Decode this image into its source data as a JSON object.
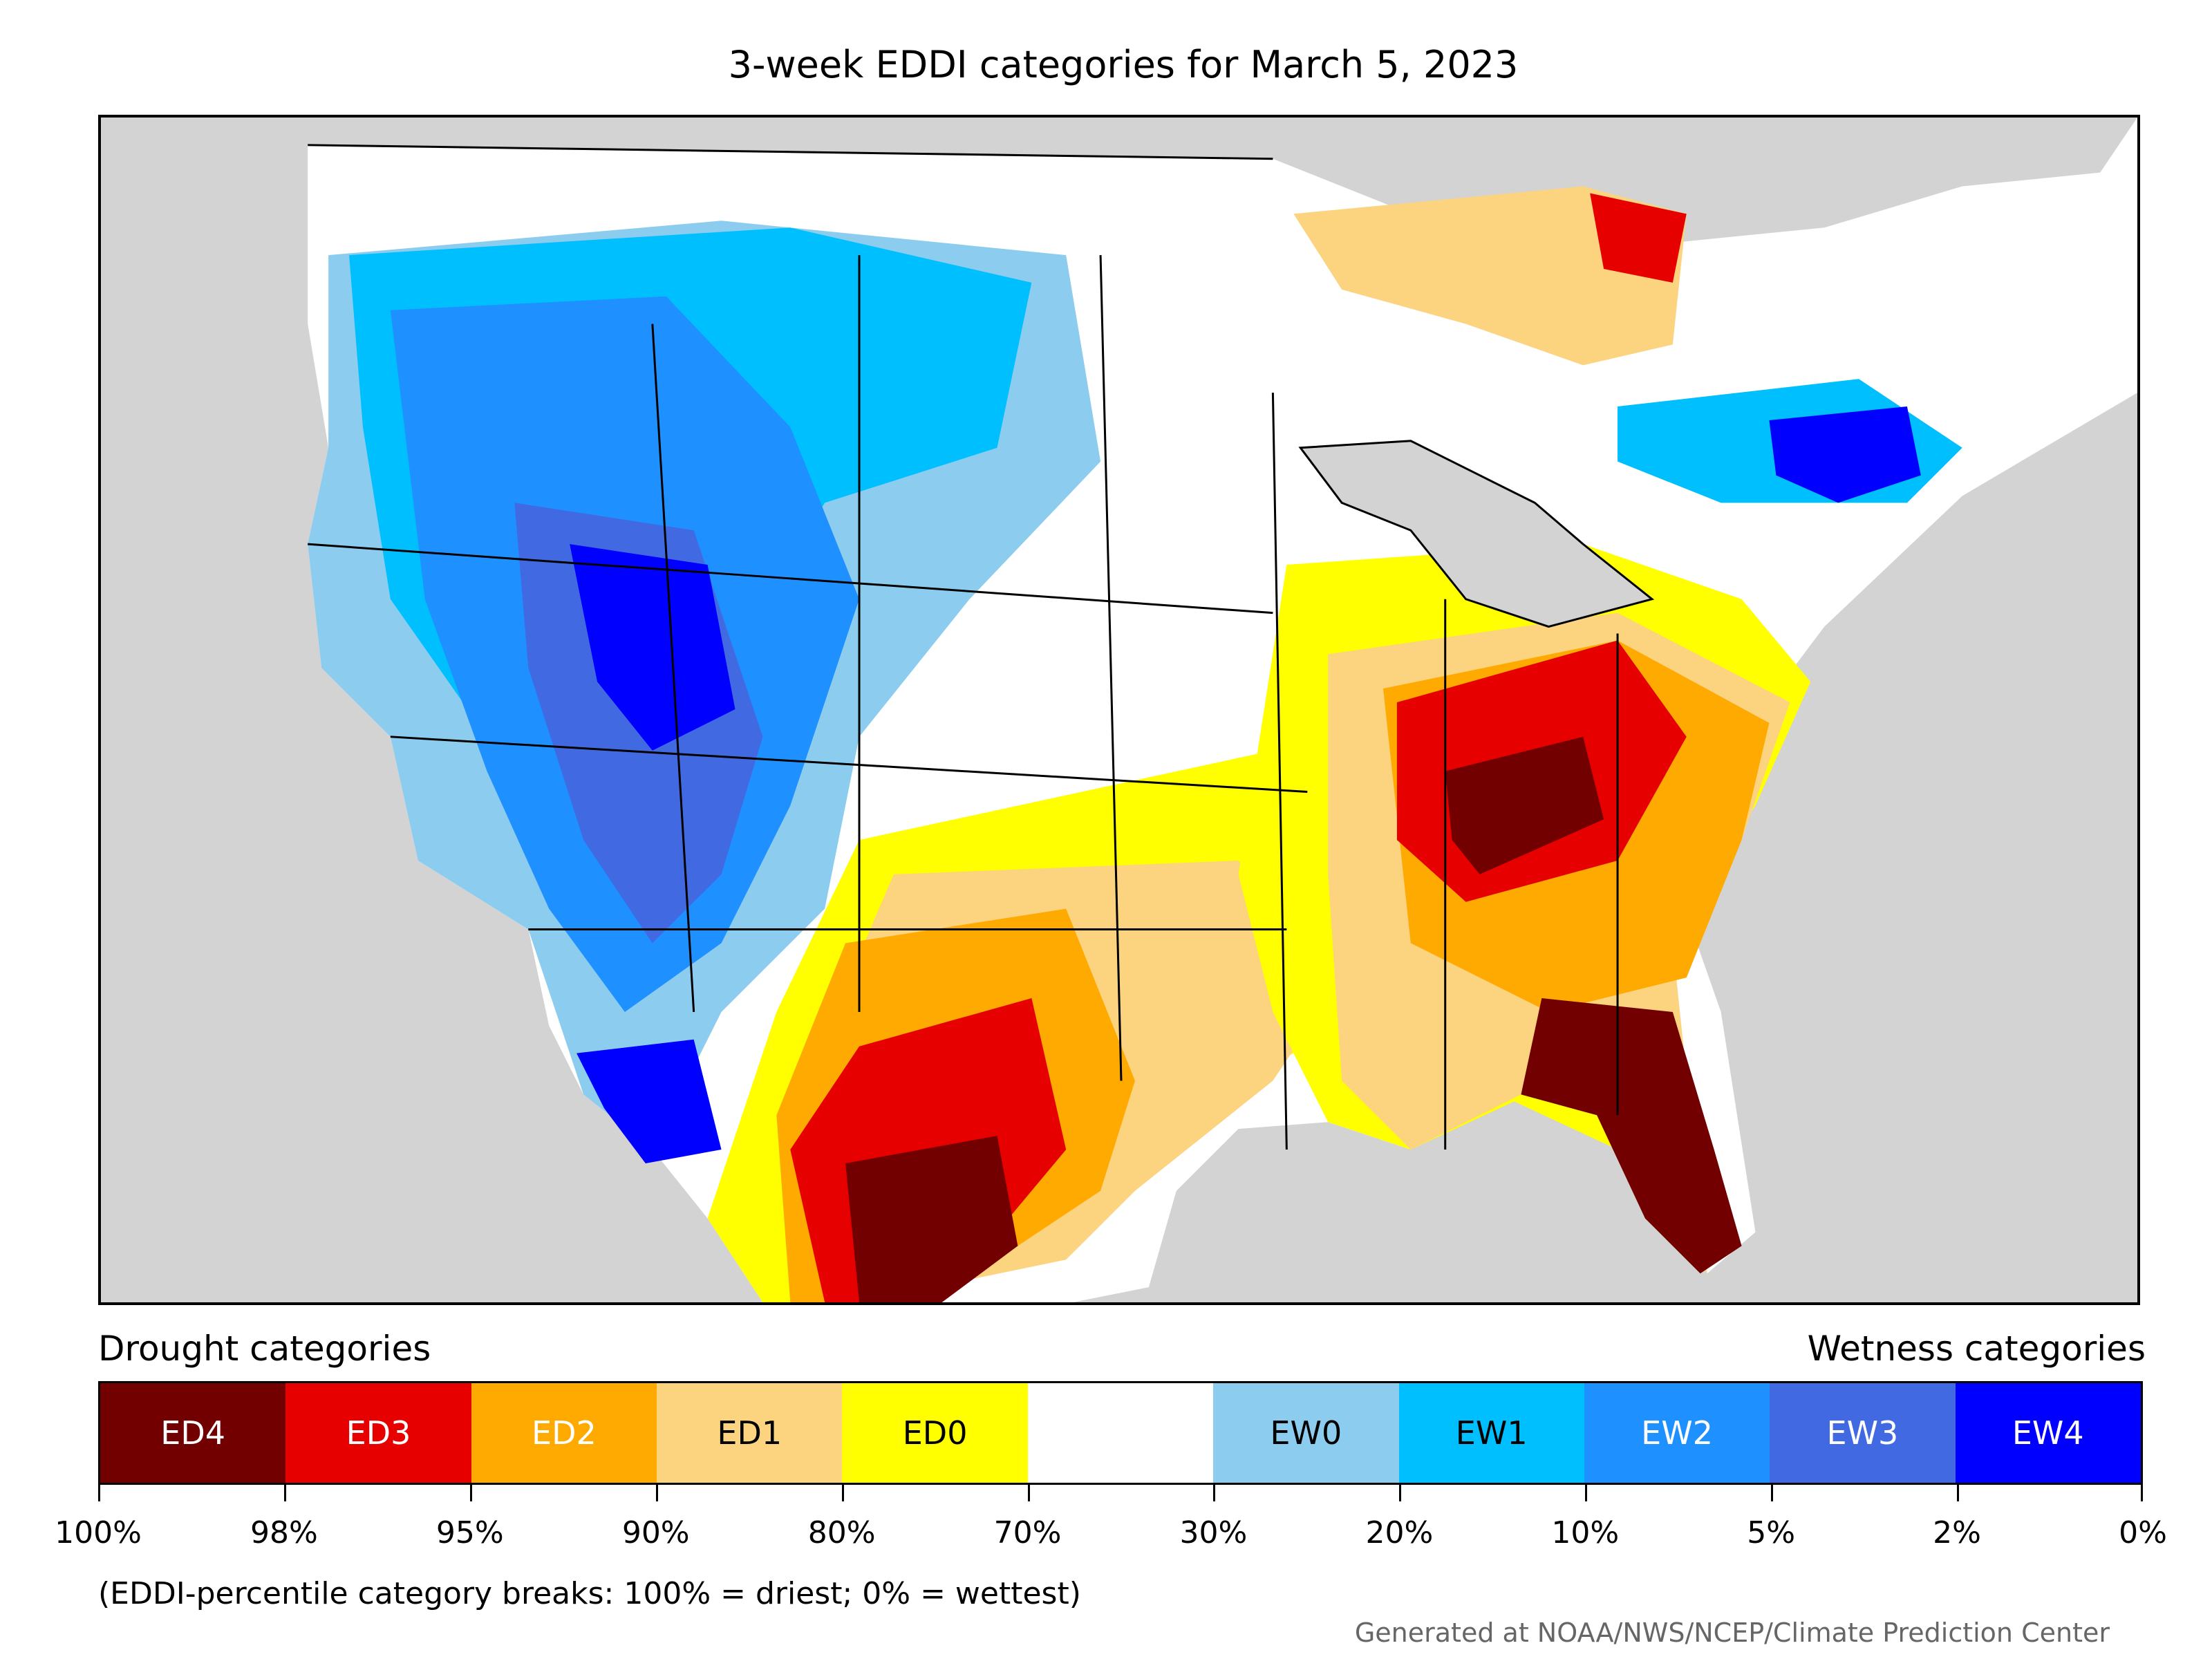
{
  "title": "3-week EDDI categories for March 5, 2023",
  "legend": {
    "drought_heading": "Drought categories",
    "wetness_heading": "Wetness categories",
    "categories": [
      {
        "label": "ED4",
        "color": "#730000",
        "text_color": "#ffffff"
      },
      {
        "label": "ED3",
        "color": "#e60000",
        "text_color": "#ffffff"
      },
      {
        "label": "ED2",
        "color": "#ffaa00",
        "text_color": "#ffffff"
      },
      {
        "label": "ED1",
        "color": "#fcd37f",
        "text_color": "#000000"
      },
      {
        "label": "ED0",
        "color": "#ffff00",
        "text_color": "#000000"
      },
      {
        "label": "",
        "color": "#ffffff",
        "text_color": "#000000"
      },
      {
        "label": "EW0",
        "color": "#8ccdef",
        "text_color": "#000000"
      },
      {
        "label": "EW1",
        "color": "#00bfff",
        "text_color": "#000000"
      },
      {
        "label": "EW2",
        "color": "#1e90ff",
        "text_color": "#ffffff"
      },
      {
        "label": "EW3",
        "color": "#4169e1",
        "text_color": "#ffffff"
      },
      {
        "label": "EW4",
        "color": "#0000ff",
        "text_color": "#ffffff"
      }
    ],
    "breaks": [
      "100%",
      "98%",
      "95%",
      "90%",
      "80%",
      "70%",
      "30%",
      "20%",
      "10%",
      "5%",
      "2%",
      "0%"
    ]
  },
  "note": "(EDDI-percentile category breaks: 100% = driest; 0% = wettest)",
  "credit": "Generated at NOAA/NWS/NCEP/Climate Prediction Center",
  "colors": {
    "land_background": "#d3d3d3",
    "boundary": "#000000"
  }
}
